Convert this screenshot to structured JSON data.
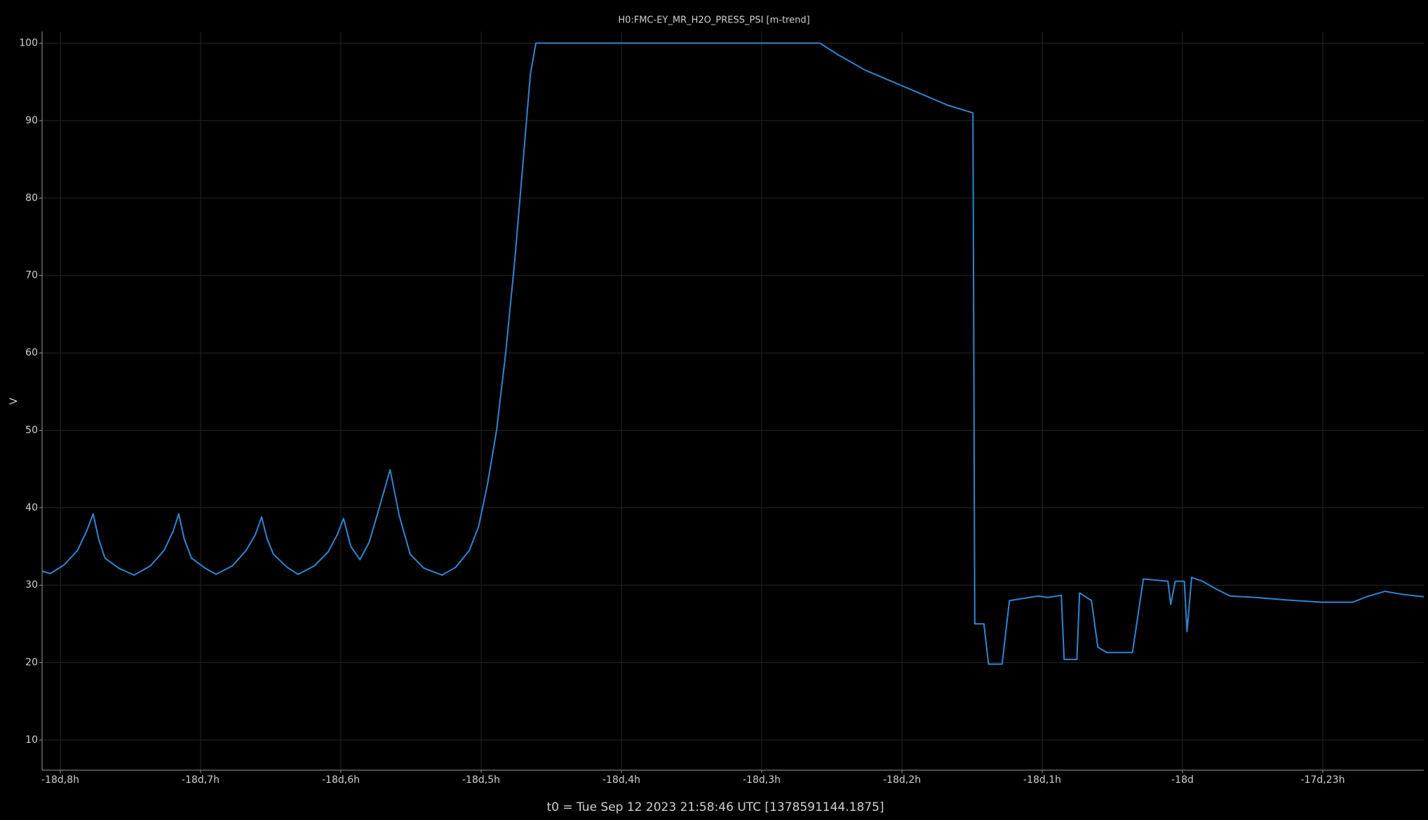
{
  "chart_data": {
    "type": "line",
    "title": "H0:FMC-EY_MR_H2O_PRESS_PSI [m-trend]",
    "y_label": "V",
    "x_label": "t0 = Tue Sep 12 2023 21:58:46 UTC [1378591144.1875]",
    "color": "#2f86d0",
    "grid": true,
    "xlim": [
      -440.13,
      -430.28
    ],
    "ylim": [
      6.1,
      101.5
    ],
    "yticks": [
      10,
      20,
      30,
      40,
      50,
      60,
      70,
      80,
      90,
      100
    ],
    "xticks": [
      {
        "value": -440,
        "label": "-18d,8h"
      },
      {
        "value": -439,
        "label": "-18d,7h"
      },
      {
        "value": -438,
        "label": "-18d,6h"
      },
      {
        "value": -437,
        "label": "-18d,5h"
      },
      {
        "value": -436,
        "label": "-18d,4h"
      },
      {
        "value": -435,
        "label": "-18d,3h"
      },
      {
        "value": -434,
        "label": "-18d,2h"
      },
      {
        "value": -433,
        "label": "-18d,1h"
      },
      {
        "value": -432,
        "label": "-18d"
      },
      {
        "value": -431,
        "label": "-17d,23h"
      }
    ],
    "x": [
      -440.13,
      -440.071,
      -439.974,
      -439.877,
      -439.812,
      -439.766,
      -439.727,
      -439.682,
      -439.584,
      -439.474,
      -439.357,
      -439.26,
      -439.195,
      -439.156,
      -439.117,
      -439.065,
      -438.968,
      -438.89,
      -438.773,
      -438.675,
      -438.61,
      -438.565,
      -438.526,
      -438.481,
      -438.383,
      -438.305,
      -438.188,
      -438.091,
      -438.026,
      -437.981,
      -437.929,
      -437.864,
      -437.799,
      -437.734,
      -437.649,
      -437.584,
      -437.506,
      -437.409,
      -437.279,
      -437.182,
      -437.084,
      -437.019,
      -436.955,
      -436.89,
      -436.825,
      -436.76,
      -436.695,
      -436.649,
      -436.61,
      -434.584,
      -434.455,
      -434.26,
      -434.0,
      -433.675,
      -433.494,
      -433.481,
      -433.416,
      -433.383,
      -433.286,
      -433.234,
      -433.026,
      -432.961,
      -432.864,
      -432.844,
      -432.753,
      -432.734,
      -432.649,
      -432.604,
      -432.539,
      -432.357,
      -432.279,
      -432.104,
      -432.084,
      -432.052,
      -431.987,
      -431.968,
      -431.935,
      -431.857,
      -431.76,
      -431.662,
      -431.468,
      -431.273,
      -431.013,
      -430.786,
      -430.688,
      -430.558,
      -430.429,
      -430.279
    ],
    "values": [
      31.8,
      31.5,
      32.6,
      34.5,
      37,
      39.2,
      36,
      33.5,
      32.2,
      31.3,
      32.5,
      34.5,
      37,
      39.2,
      36,
      33.5,
      32.2,
      31.4,
      32.5,
      34.5,
      36.5,
      38.8,
      36,
      34,
      32.3,
      31.4,
      32.5,
      34.3,
      36.5,
      38.6,
      35,
      33.3,
      35.5,
      39.5,
      44.9,
      39,
      34,
      32.2,
      31.3,
      32.3,
      34.5,
      37.5,
      43,
      50,
      60,
      72,
      86,
      96,
      100,
      100,
      98.5,
      96.5,
      94.5,
      92,
      91,
      25,
      25,
      19.8,
      19.8,
      28,
      28.6,
      28.4,
      28.7,
      20.4,
      20.4,
      29,
      28,
      22,
      21.3,
      21.3,
      30.8,
      30.5,
      27.5,
      30.5,
      30.5,
      24,
      31,
      30.5,
      29.5,
      28.6,
      28.4,
      28.1,
      27.8,
      27.8,
      28.5,
      29.2,
      28.8,
      28.5
    ]
  }
}
